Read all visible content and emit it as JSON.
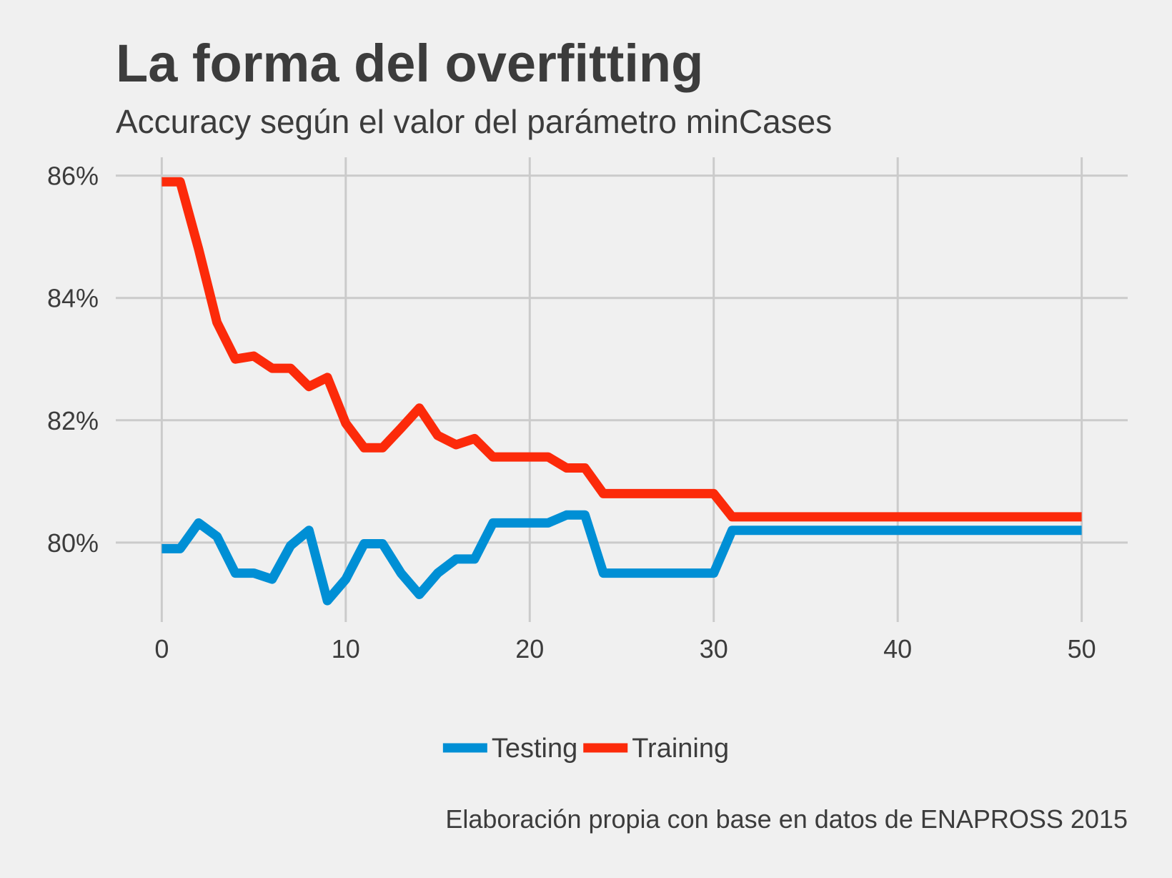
{
  "title": "La forma del overfitting",
  "subtitle": "Accuracy según el valor del parámetro minCases",
  "caption": "Elaboración propia con base en datos de ENAPROSS 2015",
  "chart_data": {
    "type": "line",
    "title": "La forma del overfitting",
    "subtitle": "Accuracy según el valor del parámetro minCases",
    "xlabel": "",
    "ylabel": "",
    "xlim": [
      -2.5,
      52.5
    ],
    "ylim": [
      78.7,
      86.3
    ],
    "x_ticks": [
      0,
      10,
      20,
      30,
      40,
      50
    ],
    "x_tick_labels": [
      "0",
      "10",
      "20",
      "30",
      "40",
      "50"
    ],
    "y_ticks": [
      80,
      82,
      84,
      86
    ],
    "y_tick_labels": [
      "80%",
      "82%",
      "84%",
      "86%"
    ],
    "grid": true,
    "legend_position": "bottom",
    "x": [
      0,
      1,
      2,
      3,
      4,
      5,
      6,
      7,
      8,
      9,
      10,
      11,
      12,
      13,
      14,
      15,
      16,
      17,
      18,
      19,
      20,
      21,
      22,
      23,
      24,
      25,
      26,
      27,
      28,
      29,
      30,
      31,
      32,
      33,
      34,
      35,
      36,
      37,
      38,
      39,
      40,
      41,
      42,
      43,
      44,
      45,
      46,
      47,
      48,
      49,
      50
    ],
    "series": [
      {
        "name": "Testing",
        "color": "#008fd5",
        "values": [
          79.9,
          79.9,
          80.32,
          80.1,
          79.5,
          79.5,
          79.4,
          79.95,
          80.2,
          79.05,
          79.4,
          79.98,
          79.98,
          79.5,
          79.15,
          79.5,
          79.73,
          79.73,
          80.32,
          80.32,
          80.32,
          80.32,
          80.45,
          80.45,
          79.5,
          79.5,
          79.5,
          79.5,
          79.5,
          79.5,
          79.5,
          80.2,
          80.2,
          80.2,
          80.2,
          80.2,
          80.2,
          80.2,
          80.2,
          80.2,
          80.2,
          80.2,
          80.2,
          80.2,
          80.2,
          80.2,
          80.2,
          80.2,
          80.2,
          80.2,
          80.2
        ]
      },
      {
        "name": "Training",
        "color": "#fc2a0a",
        "values": [
          85.9,
          85.9,
          84.8,
          83.6,
          83.0,
          83.05,
          82.85,
          82.85,
          82.55,
          82.7,
          81.95,
          81.55,
          81.55,
          81.87,
          82.2,
          81.75,
          81.6,
          81.7,
          81.4,
          81.4,
          81.4,
          81.4,
          81.22,
          81.22,
          80.8,
          80.8,
          80.8,
          80.8,
          80.8,
          80.8,
          80.8,
          80.42,
          80.42,
          80.42,
          80.42,
          80.42,
          80.42,
          80.42,
          80.42,
          80.42,
          80.42,
          80.42,
          80.42,
          80.42,
          80.42,
          80.42,
          80.42,
          80.42,
          80.42,
          80.42,
          80.42
        ]
      }
    ]
  }
}
